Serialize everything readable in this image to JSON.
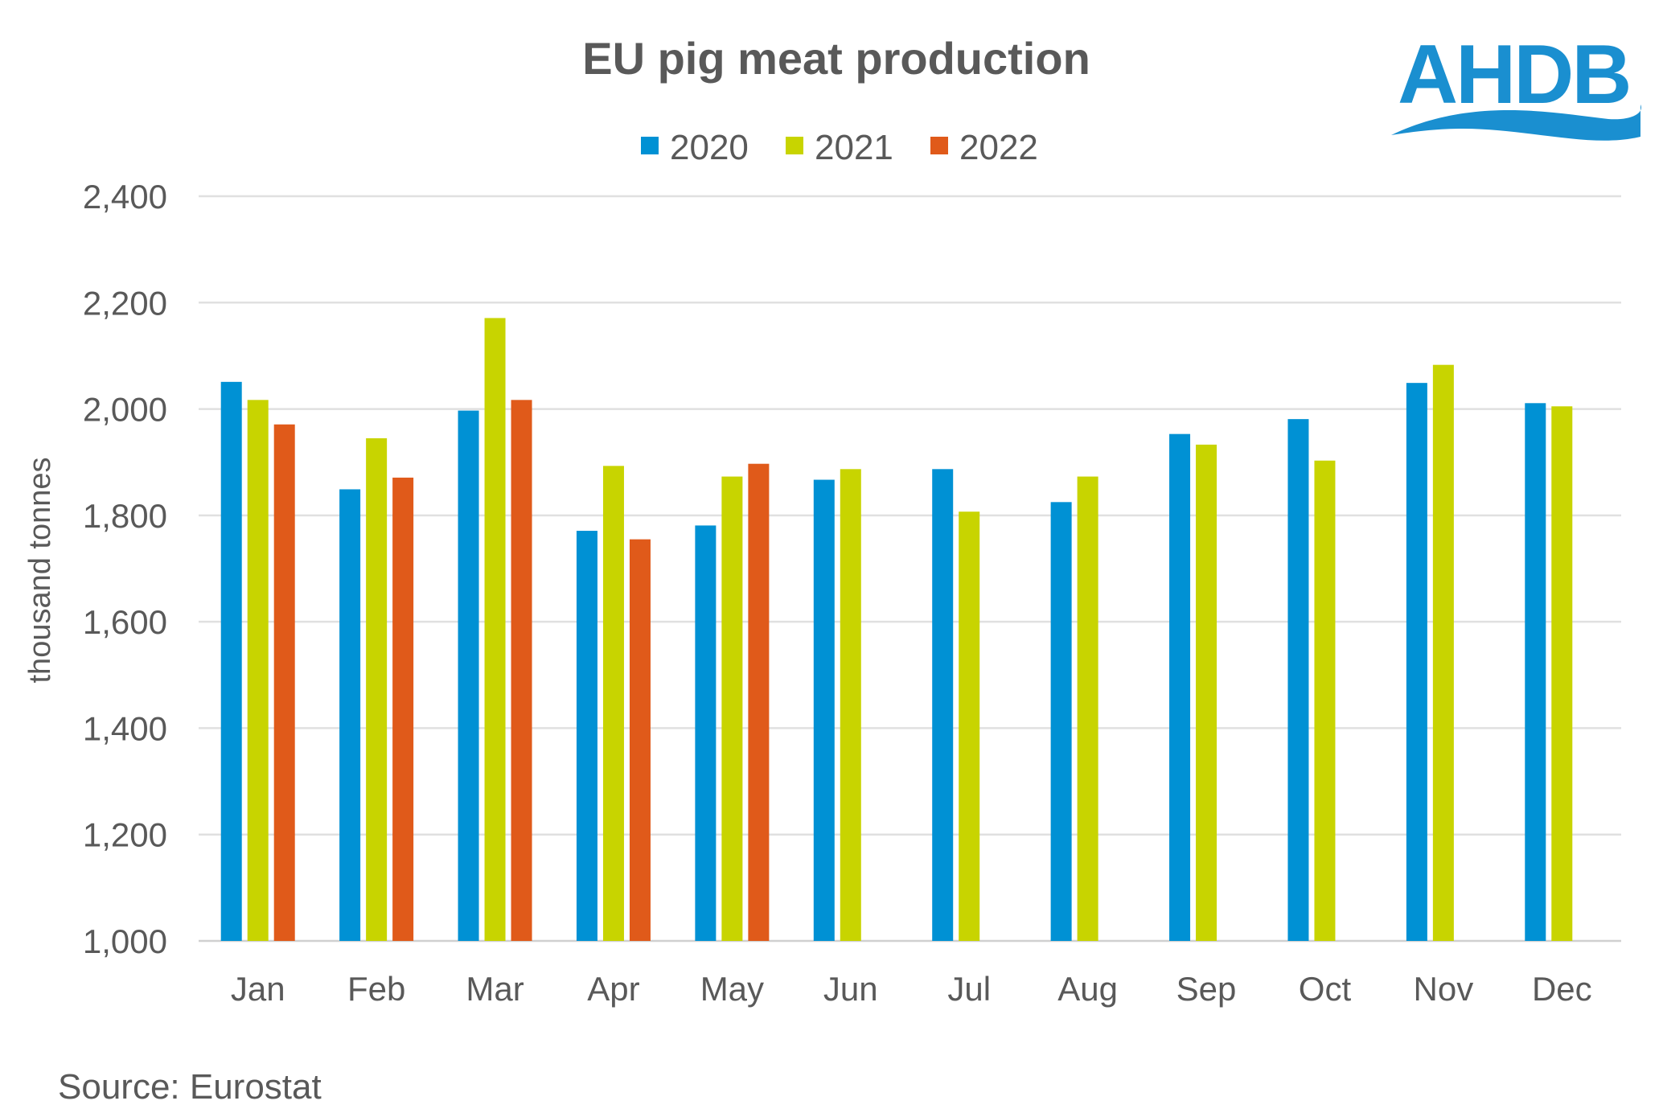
{
  "chart_data": {
    "type": "bar",
    "title": "EU pig meat production",
    "ylabel": "thousand tonnes",
    "xlabel": "",
    "ylim": [
      1000,
      2400
    ],
    "yticks": [
      1000,
      1200,
      1400,
      1600,
      1800,
      2000,
      2200,
      2400
    ],
    "ytick_labels": [
      "1,000",
      "1,200",
      "1,400",
      "1,600",
      "1,800",
      "2,000",
      "2,200",
      "2,400"
    ],
    "grid": true,
    "legend_position": "top",
    "categories": [
      "Jan",
      "Feb",
      "Mar",
      "Apr",
      "May",
      "Jun",
      "Jul",
      "Aug",
      "Sep",
      "Oct",
      "Nov",
      "Dec"
    ],
    "series": [
      {
        "name": "2020",
        "color": "#0091d4",
        "values": [
          2051,
          1849,
          1997,
          1771,
          1781,
          1867,
          1887,
          1825,
          1953,
          1981,
          2049,
          2011
        ]
      },
      {
        "name": "2021",
        "color": "#c8d400",
        "values": [
          2017,
          1945,
          2171,
          1893,
          1873,
          1887,
          1807,
          1873,
          1933,
          1903,
          2083,
          2005
        ]
      },
      {
        "name": "2022",
        "color": "#e05a1a",
        "values": [
          1971,
          1871,
          2017,
          1755,
          1897,
          null,
          null,
          null,
          null,
          null,
          null,
          null
        ]
      }
    ],
    "source": "Source: Eurostat"
  },
  "logo": {
    "text": "AHDB",
    "color": "#1a8fd0"
  }
}
